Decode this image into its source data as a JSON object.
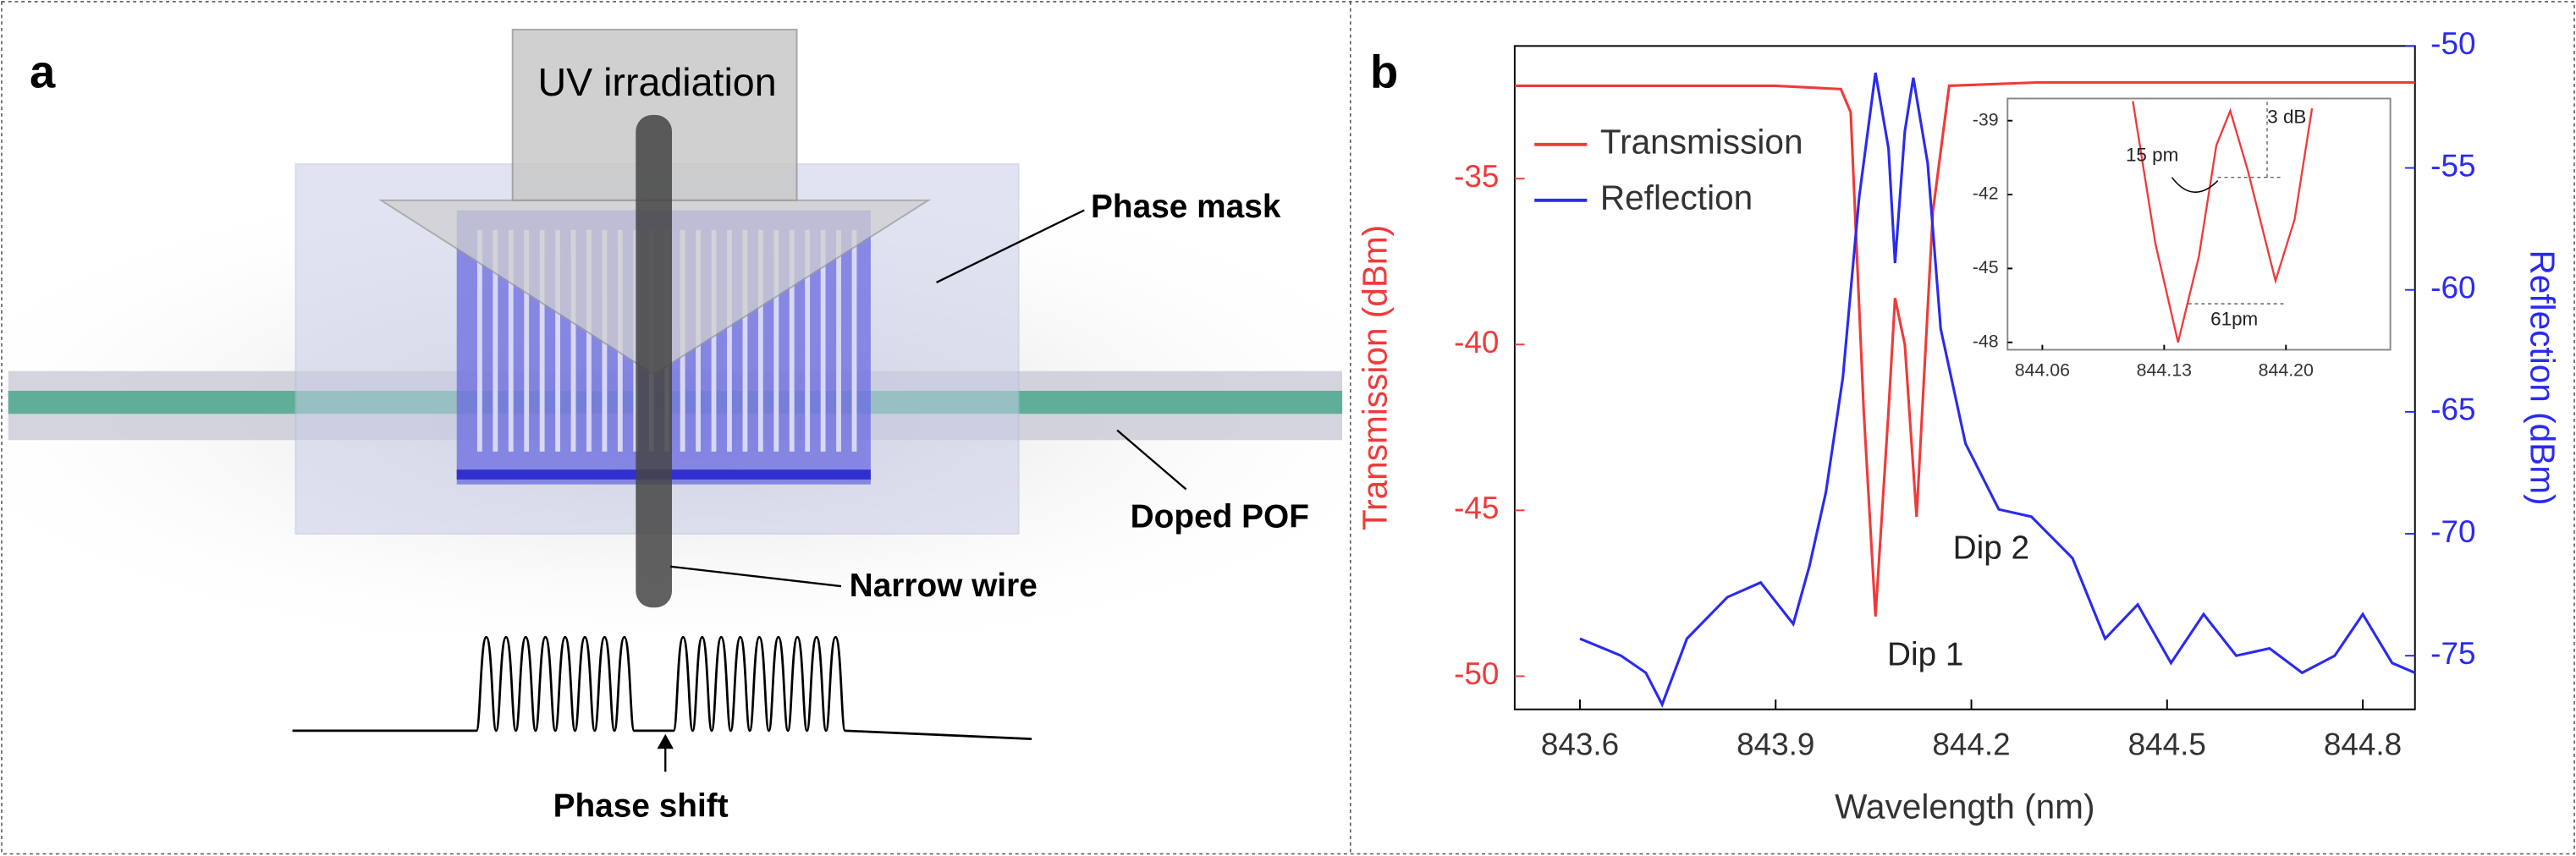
{
  "panel_labels": [
    "a",
    "b"
  ],
  "diagram": {
    "uv": "UV irradiation",
    "phase_mask": "Phase mask",
    "doped_pof": "Doped POF",
    "narrow_wire": "Narrow wire",
    "phase_shift": "Phase shift"
  },
  "chart_data": [
    {
      "type": "line",
      "xlabel": "Wavelength (nm)",
      "ylabel": "Transmission (dBm)",
      "y2label": "Reflection (dBm)",
      "xlim": [
        843.5,
        844.88
      ],
      "xticks": [
        843.6,
        843.9,
        844.2,
        844.5,
        844.8
      ],
      "ylim": [
        -51,
        -31
      ],
      "yticks": [
        -35,
        -40,
        -45,
        -50
      ],
      "y2lim": [
        -77.2,
        -50
      ],
      "y2ticks": [
        -50,
        -55,
        -60,
        -65,
        -70,
        -75
      ],
      "legend": "upper left",
      "annotations": [
        "Dip 1",
        "Dip 2"
      ],
      "series": [
        {
          "name": "Transmission",
          "color": "#f03a3a",
          "x": [
            843.5,
            843.8,
            843.9,
            844.0,
            844.015,
            844.035,
            844.053,
            844.073,
            844.083,
            844.098,
            844.116,
            844.141,
            844.166,
            844.3,
            844.6,
            844.88
          ],
          "values": [
            -32.2,
            -32.2,
            -32.2,
            -32.3,
            -33,
            -42,
            -48.2,
            -42,
            -38.6,
            -40,
            -45.2,
            -36,
            -32.2,
            -32.1,
            -32.1,
            -32.1
          ]
        },
        {
          "name": "Reflection",
          "color": "#2a2af0",
          "axis": "y2",
          "x": [
            843.6,
            843.663,
            843.701,
            843.726,
            843.764,
            843.826,
            843.877,
            843.927,
            843.952,
            843.977,
            844.003,
            844.028,
            844.053,
            844.073,
            844.083,
            844.098,
            844.111,
            844.133,
            844.153,
            844.191,
            844.242,
            844.292,
            844.355,
            844.405,
            844.455,
            844.506,
            844.556,
            844.606,
            844.657,
            844.707,
            844.757,
            844.8,
            844.845,
            844.88
          ],
          "values": [
            -74.3,
            -75,
            -75.7,
            -77,
            -74.3,
            -72.6,
            -72,
            -73.7,
            -71.3,
            -68.3,
            -63.6,
            -56.2,
            -51.1,
            -54.2,
            -58.9,
            -53.5,
            -51.3,
            -54.8,
            -61.6,
            -66.3,
            -69,
            -69.3,
            -71,
            -74.3,
            -72.9,
            -75.3,
            -73.3,
            -75,
            -74.7,
            -75.7,
            -75,
            -73.3,
            -75.3,
            -75.7
          ]
        }
      ]
    },
    {
      "type": "line",
      "xlim": [
        844.04,
        844.26
      ],
      "xticks": [
        844.06,
        844.13,
        {
          "value": 844.2,
          "label": "844.20"
        }
      ],
      "ylim": [
        -48.3,
        -38.1
      ],
      "yticks": [
        -39,
        -42,
        -45,
        -48
      ],
      "annotations": [
        "15 pm",
        "3 dB",
        "61pm"
      ],
      "series": [
        {
          "color": "#f03a3a",
          "x": [
            844.112,
            844.125,
            844.138,
            844.15,
            844.16,
            844.168,
            844.178,
            844.194,
            844.205,
            844.215
          ],
          "values": [
            -38.2,
            -44,
            -48,
            -44.5,
            -40,
            -38.6,
            -41,
            -45.5,
            -43,
            -38.5
          ]
        }
      ]
    }
  ]
}
